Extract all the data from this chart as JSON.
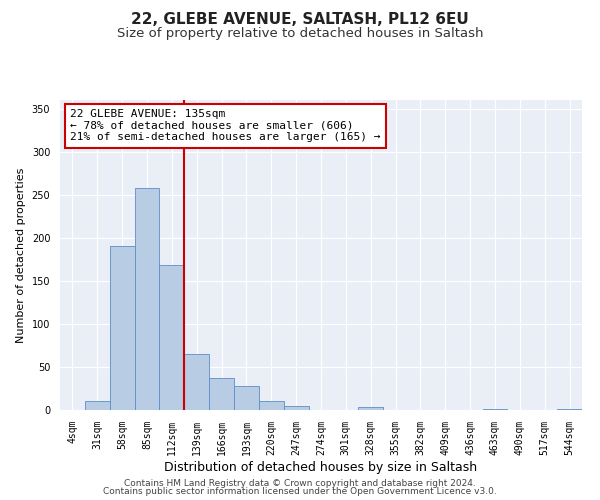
{
  "title": "22, GLEBE AVENUE, SALTASH, PL12 6EU",
  "subtitle": "Size of property relative to detached houses in Saltash",
  "xlabel": "Distribution of detached houses by size in Saltash",
  "ylabel": "Number of detached properties",
  "bin_labels": [
    "4sqm",
    "31sqm",
    "58sqm",
    "85sqm",
    "112sqm",
    "139sqm",
    "166sqm",
    "193sqm",
    "220sqm",
    "247sqm",
    "274sqm",
    "301sqm",
    "328sqm",
    "355sqm",
    "382sqm",
    "409sqm",
    "436sqm",
    "463sqm",
    "490sqm",
    "517sqm",
    "544sqm"
  ],
  "bar_heights": [
    0,
    10,
    191,
    258,
    168,
    65,
    37,
    28,
    11,
    5,
    0,
    0,
    3,
    0,
    0,
    0,
    0,
    1,
    0,
    0,
    1
  ],
  "bar_color": "#b8cce4",
  "bar_edgecolor": "#5b8dc8",
  "vline_color": "#cc0000",
  "annotation_line1": "22 GLEBE AVENUE: 135sqm",
  "annotation_line2": "← 78% of detached houses are smaller (606)",
  "annotation_line3": "21% of semi-detached houses are larger (165) →",
  "ylim": [
    0,
    360
  ],
  "yticks": [
    0,
    50,
    100,
    150,
    200,
    250,
    300,
    350
  ],
  "background_color": "#eaeff7",
  "grid_color": "#ffffff",
  "footer_line1": "Contains HM Land Registry data © Crown copyright and database right 2024.",
  "footer_line2": "Contains public sector information licensed under the Open Government Licence v3.0.",
  "title_fontsize": 11,
  "subtitle_fontsize": 9.5,
  "xlabel_fontsize": 9,
  "ylabel_fontsize": 8,
  "tick_fontsize": 7,
  "annotation_fontsize": 8,
  "footer_fontsize": 6.5
}
